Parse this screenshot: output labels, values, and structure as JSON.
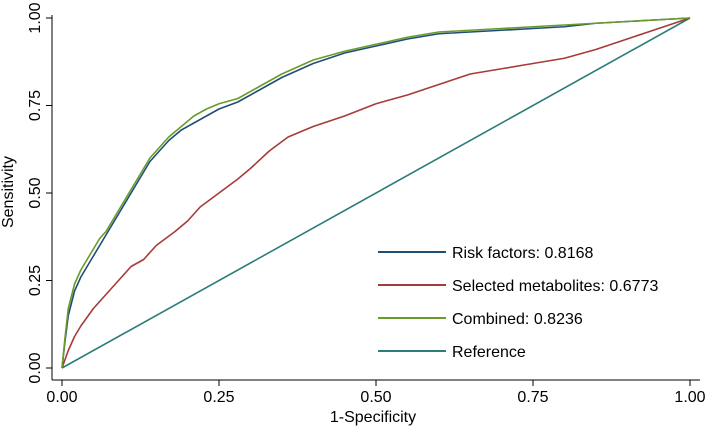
{
  "chart_data": {
    "type": "line",
    "title": "",
    "xlabel": "1-Specificity",
    "ylabel": "Sensitivity",
    "xlim": [
      0,
      1
    ],
    "ylim": [
      0,
      1
    ],
    "xticks": [
      0,
      0.25,
      0.5,
      0.75,
      1
    ],
    "yticks": [
      0,
      0.25,
      0.5,
      0.75,
      1
    ],
    "xtick_labels": [
      "0.00",
      "0.25",
      "0.50",
      "0.75",
      "1.00"
    ],
    "ytick_labels": [
      "0.00",
      "0.25",
      "0.50",
      "0.75",
      "1.00"
    ],
    "grid": false,
    "legend_position": "bottom-right",
    "series": [
      {
        "name": "Risk factors: 0.8168",
        "color": "#1f4e79",
        "x": [
          0,
          0.005,
          0.01,
          0.02,
          0.03,
          0.04,
          0.05,
          0.06,
          0.07,
          0.08,
          0.09,
          0.1,
          0.11,
          0.12,
          0.13,
          0.14,
          0.15,
          0.17,
          0.19,
          0.21,
          0.23,
          0.25,
          0.28,
          0.31,
          0.35,
          0.4,
          0.45,
          0.5,
          0.55,
          0.6,
          0.65,
          0.7,
          0.75,
          0.8,
          0.85,
          0.9,
          0.95,
          1.0
        ],
        "y": [
          0,
          0.08,
          0.15,
          0.22,
          0.26,
          0.29,
          0.32,
          0.35,
          0.38,
          0.41,
          0.44,
          0.47,
          0.5,
          0.53,
          0.56,
          0.59,
          0.61,
          0.65,
          0.68,
          0.7,
          0.72,
          0.74,
          0.76,
          0.79,
          0.83,
          0.87,
          0.9,
          0.92,
          0.94,
          0.955,
          0.96,
          0.965,
          0.97,
          0.975,
          0.985,
          0.99,
          0.995,
          1.0
        ]
      },
      {
        "name": "Selected metabolites: 0.6773",
        "color": "#a83a3a",
        "x": [
          0,
          0.01,
          0.02,
          0.03,
          0.05,
          0.07,
          0.09,
          0.11,
          0.13,
          0.15,
          0.18,
          0.2,
          0.22,
          0.25,
          0.28,
          0.3,
          0.33,
          0.36,
          0.4,
          0.45,
          0.5,
          0.55,
          0.6,
          0.65,
          0.7,
          0.75,
          0.8,
          0.85,
          0.9,
          0.95,
          1.0
        ],
        "y": [
          0,
          0.05,
          0.09,
          0.12,
          0.17,
          0.21,
          0.25,
          0.29,
          0.31,
          0.35,
          0.39,
          0.42,
          0.46,
          0.5,
          0.54,
          0.57,
          0.62,
          0.66,
          0.69,
          0.72,
          0.755,
          0.78,
          0.81,
          0.84,
          0.855,
          0.87,
          0.885,
          0.91,
          0.94,
          0.97,
          1.0
        ]
      },
      {
        "name": "Combined: 0.8236",
        "color": "#6a9a2a",
        "x": [
          0,
          0.005,
          0.01,
          0.02,
          0.03,
          0.04,
          0.05,
          0.06,
          0.07,
          0.08,
          0.09,
          0.1,
          0.11,
          0.12,
          0.13,
          0.14,
          0.15,
          0.17,
          0.19,
          0.21,
          0.23,
          0.25,
          0.28,
          0.31,
          0.35,
          0.4,
          0.45,
          0.5,
          0.55,
          0.6,
          0.65,
          0.7,
          0.75,
          0.8,
          0.85,
          0.9,
          0.95,
          1.0
        ],
        "y": [
          0,
          0.09,
          0.17,
          0.24,
          0.28,
          0.31,
          0.34,
          0.37,
          0.39,
          0.42,
          0.45,
          0.48,
          0.51,
          0.54,
          0.57,
          0.6,
          0.62,
          0.66,
          0.69,
          0.72,
          0.74,
          0.755,
          0.77,
          0.8,
          0.84,
          0.88,
          0.905,
          0.925,
          0.945,
          0.96,
          0.965,
          0.97,
          0.975,
          0.98,
          0.985,
          0.99,
          0.995,
          1.0
        ]
      },
      {
        "name": "Reference",
        "color": "#2e7d78",
        "x": [
          0,
          1
        ],
        "y": [
          0,
          1
        ]
      }
    ]
  }
}
